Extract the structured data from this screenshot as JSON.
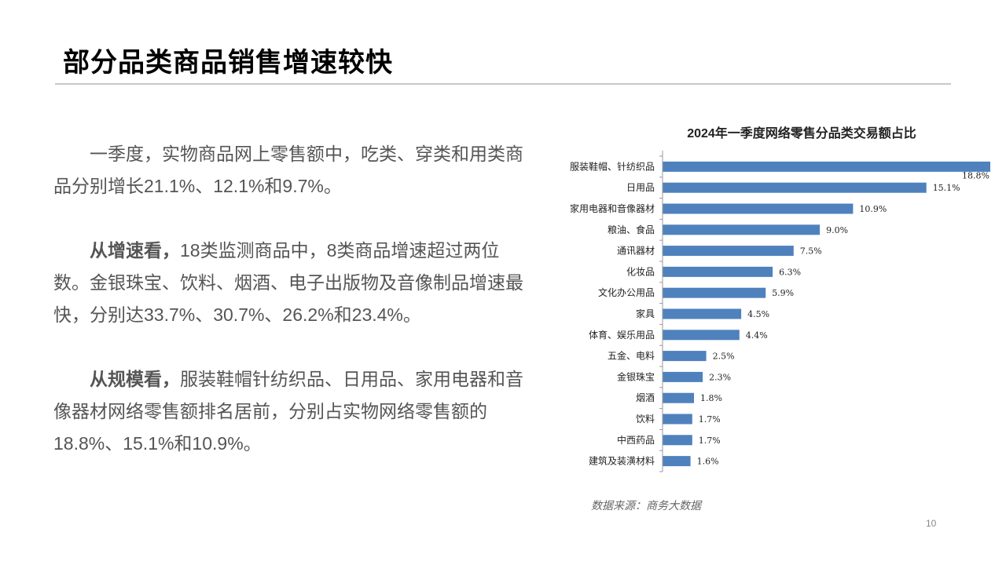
{
  "slide": {
    "title": "部分品类商品销售增速较快",
    "page_number": "10"
  },
  "text": {
    "p1_body": "一季度，实物商品网上零售额中，吃类、穿类和用类商品分别增长21.1%、12.1%和9.7%。",
    "p2_lead": "从增速看，",
    "p2_body": "18类监测商品中，8类商品增速超过两位数。金银珠宝、饮料、烟酒、电子出版物及音像制品增速最快，分别达33.7%、30.7%、26.2%和23.4%。",
    "p3_lead": "从规模看，",
    "p3_body": "服装鞋帽针纺织品、日用品、家用电器和音像器材网络零售额排名居前，分别占实物网络零售额的18.8%、15.1%和10.9%。"
  },
  "source_note": "数据来源：商务大数据",
  "chart_data": {
    "type": "bar",
    "orientation": "horizontal",
    "title": "2024年一季度网络零售分品类交易额占比",
    "categories": [
      "服装鞋帽、针纺织品",
      "日用品",
      "家用电器和音像器材",
      "粮油、食品",
      "通讯器材",
      "化妆品",
      "文化办公用品",
      "家具",
      "体育、娱乐用品",
      "五金、电料",
      "金银珠宝",
      "烟酒",
      "饮料",
      "中西药品",
      "建筑及装潢材料"
    ],
    "values": [
      18.8,
      15.1,
      10.9,
      9.0,
      7.5,
      6.3,
      5.9,
      4.5,
      4.4,
      2.5,
      2.3,
      1.8,
      1.7,
      1.7,
      1.6
    ],
    "value_labels": [
      "18.8%",
      "15.1%",
      "10.9%",
      "9.0%",
      "7.5%",
      "6.3%",
      "5.9%",
      "4.5%",
      "4.4%",
      "2.5%",
      "2.3%",
      "1.8%",
      "1.7%",
      "1.7%",
      "1.6%"
    ],
    "bar_color": "#4f81bd",
    "xlim": [
      0,
      18.8
    ],
    "grid": false,
    "legend": "none"
  }
}
